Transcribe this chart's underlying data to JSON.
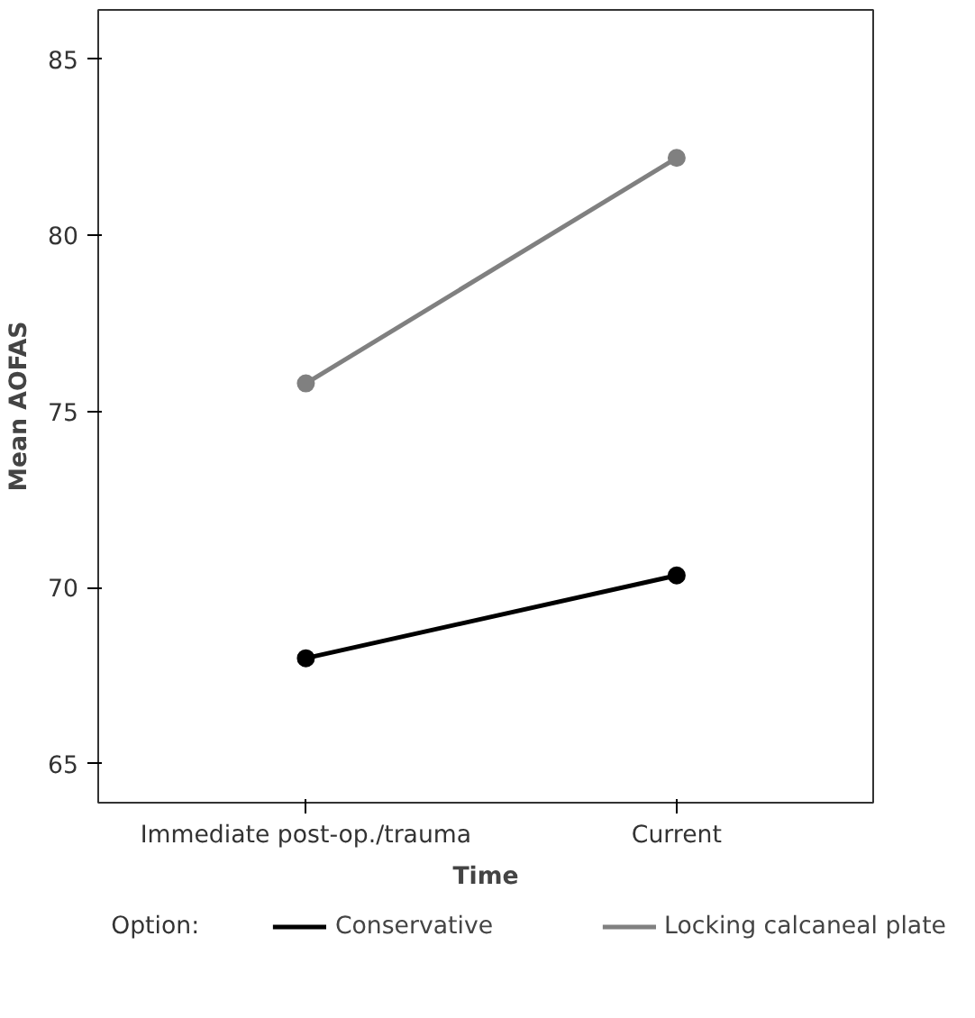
{
  "chart_data": {
    "type": "line",
    "xlabel": "Time",
    "ylabel": "Mean AOFAS",
    "legend_title": "Option:",
    "categories": [
      "Immediate post-op./trauma",
      "Current"
    ],
    "series": [
      {
        "name": "Conservative",
        "color": "#000000",
        "values": [
          68.0,
          70.35
        ]
      },
      {
        "name": "Locking calcaneal plate",
        "color": "#808080",
        "values": [
          75.8,
          82.2
        ]
      }
    ],
    "ylim": [
      63.9,
      86.4
    ],
    "yticks": [
      65,
      70,
      75,
      80,
      85
    ],
    "grid": false,
    "legend": "bottom",
    "marker": "circle",
    "line_style": "solid"
  }
}
